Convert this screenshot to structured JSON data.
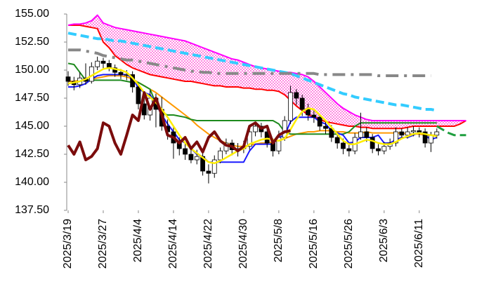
{
  "chart_data": {
    "type": "candlestick",
    "ylim": [
      137.5,
      155
    ],
    "yticks": [
      {
        "value": 137.5,
        "label": "137.50"
      },
      {
        "value": 140,
        "label": "140.00"
      },
      {
        "value": 142.5,
        "label": "142.50"
      },
      {
        "value": 145,
        "label": "145.00"
      },
      {
        "value": 147.5,
        "label": "147.50"
      },
      {
        "value": 150,
        "label": "150.00"
      },
      {
        "value": 152.5,
        "label": "152.50"
      },
      {
        "value": 155,
        "label": "155.00"
      }
    ],
    "categories": [
      "2025/3/19",
      null,
      null,
      null,
      null,
      null,
      "2025/3/27",
      null,
      null,
      null,
      null,
      null,
      "2025/4/4",
      null,
      null,
      null,
      null,
      null,
      "2025/4/14",
      null,
      null,
      null,
      null,
      null,
      "2025/4/22",
      null,
      null,
      null,
      null,
      null,
      "2025/4/30",
      null,
      null,
      null,
      null,
      null,
      "2025/5/8",
      null,
      null,
      null,
      null,
      null,
      "2025/5/16",
      null,
      null,
      null,
      null,
      null,
      "2025/5/26",
      null,
      null,
      null,
      null,
      null,
      "2025/6/3",
      null,
      null,
      null,
      null,
      null,
      "2025/6/11",
      null,
      null,
      null,
      null,
      null,
      null,
      null,
      null
    ],
    "up_color": "#ffffff",
    "down_color": "#000000",
    "candles": {
      "open": [
        149.4,
        149.0,
        148.7,
        149.3,
        149.0,
        150.3,
        150.8,
        150.6,
        150.2,
        149.8,
        149.6,
        149.6,
        148.5,
        147.0,
        146.0,
        147.5,
        146.5,
        145.0,
        144.5,
        143.5,
        143.0,
        142.5,
        142.0,
        142.3,
        141.0,
        140.8,
        142.0,
        142.8,
        143.5,
        142.9,
        143.0,
        143.2,
        144.5,
        145.0,
        144.5,
        143.5,
        142.8,
        144.0,
        145.5,
        148.0,
        147.5,
        146.5,
        146.0,
        145.8,
        145.0,
        144.8,
        144.0,
        143.5,
        143.0,
        142.8,
        144.0,
        144.5,
        144.0,
        143.0,
        142.8,
        143.2,
        143.5,
        144.5,
        144.2,
        144.5,
        144.6,
        144.5,
        143.5,
        144.2,
        null,
        null,
        null,
        null,
        null
      ],
      "high": [
        149.9,
        149.4,
        149.8,
        150.6,
        150.7,
        151.2,
        151.1,
        150.9,
        150.5,
        150.1,
        150.0,
        149.9,
        148.8,
        147.8,
        148.2,
        147.9,
        147.6,
        145.6,
        145.0,
        144.0,
        143.6,
        143.0,
        142.9,
        142.6,
        141.6,
        142.4,
        143.1,
        143.9,
        143.8,
        143.5,
        143.7,
        144.8,
        145.4,
        145.3,
        144.9,
        143.9,
        144.6,
        145.9,
        148.6,
        148.3,
        147.8,
        147.0,
        146.4,
        146.1,
        145.4,
        145.1,
        144.4,
        143.9,
        143.5,
        144.4,
        146.2,
        144.9,
        144.3,
        143.4,
        143.6,
        143.9,
        144.9,
        144.8,
        144.9,
        145.0,
        144.9,
        144.8,
        144.5,
        144.8,
        null,
        null,
        null,
        null,
        null
      ],
      "low": [
        148.6,
        148.2,
        148.4,
        148.7,
        148.8,
        150.0,
        150.1,
        149.9,
        149.4,
        149.2,
        149.1,
        148.0,
        146.5,
        145.6,
        145.5,
        144.9,
        144.6,
        143.8,
        142.1,
        142.4,
        142.0,
        141.7,
        141.6,
        140.6,
        139.9,
        140.4,
        141.7,
        142.5,
        142.4,
        142.3,
        142.6,
        142.9,
        144.1,
        144.0,
        143.1,
        142.3,
        142.5,
        143.7,
        145.2,
        146.9,
        145.9,
        145.5,
        145.3,
        144.6,
        144.3,
        143.6,
        143.0,
        142.5,
        142.3,
        142.5,
        143.8,
        143.6,
        142.6,
        142.4,
        142.5,
        142.9,
        143.2,
        143.9,
        143.9,
        144.1,
        144.0,
        143.1,
        142.7,
        143.9,
        null,
        null,
        null,
        null,
        null
      ],
      "close": [
        149.0,
        148.7,
        149.3,
        149.0,
        150.3,
        150.8,
        150.6,
        150.2,
        149.8,
        149.6,
        149.6,
        148.5,
        147.0,
        146.0,
        147.5,
        146.5,
        145.0,
        144.5,
        143.5,
        143.0,
        142.5,
        142.0,
        142.3,
        141.0,
        140.8,
        142.0,
        142.8,
        143.5,
        142.9,
        143.0,
        143.2,
        144.5,
        145.0,
        144.5,
        143.5,
        142.8,
        144.0,
        145.5,
        148.0,
        147.5,
        146.5,
        146.0,
        145.8,
        145.0,
        144.8,
        144.0,
        143.5,
        143.0,
        142.8,
        144.0,
        144.5,
        144.0,
        143.0,
        142.8,
        143.2,
        143.5,
        144.5,
        144.2,
        144.5,
        144.6,
        144.5,
        143.5,
        144.2,
        144.5,
        null,
        null,
        null,
        null,
        null
      ]
    },
    "cloud": {
      "series_a": 0,
      "series_b": 1,
      "color": "#ff33cc"
    },
    "series": [
      {
        "color": "#ff0000",
        "style": "solid",
        "width": 2,
        "values": [
          154.0,
          154.0,
          154.0,
          153.9,
          153.8,
          153.7,
          152.5,
          152.0,
          151.3,
          150.9,
          150.5,
          150.2,
          150.0,
          149.8,
          149.6,
          149.5,
          149.4,
          149.3,
          149.2,
          149.1,
          149.0,
          149.0,
          148.9,
          148.8,
          148.7,
          148.6,
          148.6,
          148.5,
          148.5,
          148.5,
          148.4,
          148.4,
          148.3,
          148.3,
          148.2,
          148.2,
          148.1,
          147.8,
          147.3,
          146.8,
          146.4,
          146.0,
          145.8,
          145.6,
          145.4,
          145.3,
          145.2,
          145.1,
          145.0,
          145.0,
          144.9,
          144.9,
          144.8,
          144.8,
          144.8,
          144.8,
          144.8,
          144.8,
          144.9,
          145.0,
          145.0,
          145.0,
          145.0,
          145.0,
          145.0,
          145.0,
          145.0,
          145.2,
          145.5
        ]
      },
      {
        "color": "#ff00ff",
        "style": "solid",
        "width": 2,
        "values": [
          154.0,
          154.1,
          154.1,
          154.2,
          154.4,
          154.9,
          154.2,
          154.0,
          153.8,
          153.7,
          153.6,
          153.5,
          153.4,
          153.3,
          153.2,
          153.1,
          153.0,
          152.9,
          152.8,
          152.7,
          152.6,
          152.4,
          152.2,
          152.0,
          151.8,
          151.6,
          151.4,
          151.2,
          151.0,
          150.9,
          150.7,
          150.5,
          150.3,
          150.2,
          150.1,
          150.0,
          149.9,
          149.8,
          149.8,
          149.7,
          149.6,
          149.4,
          149.0,
          148.5,
          148.0,
          147.5,
          147.0,
          146.6,
          146.3,
          146.0,
          145.8,
          145.6,
          145.5,
          145.5,
          145.5,
          145.5,
          145.5,
          145.5,
          145.5,
          145.5,
          145.5,
          145.5,
          145.5,
          145.5,
          145.5,
          145.5,
          145.5,
          145.5,
          145.5
        ]
      },
      {
        "color": "#33ccff",
        "style": "dashed",
        "width": 4,
        "values": [
          153.3,
          153.2,
          153.1,
          153.0,
          152.9,
          152.8,
          152.8,
          152.7,
          152.6,
          152.6,
          152.5,
          152.4,
          152.3,
          152.2,
          152.1,
          152.0,
          151.9,
          151.8,
          151.7,
          151.6,
          151.5,
          151.4,
          151.3,
          151.2,
          151.1,
          151.0,
          150.9,
          150.8,
          150.7,
          150.6,
          150.5,
          150.4,
          150.3,
          150.2,
          150.1,
          150.0,
          149.9,
          149.8,
          149.7,
          149.5,
          149.3,
          149.1,
          148.9,
          148.7,
          148.5,
          148.3,
          148.1,
          147.9,
          147.8,
          147.6,
          147.5,
          147.4,
          147.3,
          147.2,
          147.1,
          147.0,
          146.9,
          146.9,
          146.8,
          146.7,
          146.6,
          146.5,
          146.5,
          146.4,
          null,
          null,
          null,
          null,
          null
        ]
      },
      {
        "color": "#888888",
        "style": "dashdot",
        "width": 4,
        "values": [
          151.8,
          151.8,
          151.8,
          151.7,
          151.6,
          151.5,
          151.3,
          151.2,
          151.1,
          151.0,
          150.9,
          150.9,
          150.8,
          150.7,
          150.6,
          150.5,
          150.4,
          150.3,
          150.2,
          150.1,
          150.0,
          149.9,
          149.9,
          149.8,
          149.8,
          149.7,
          149.7,
          149.7,
          149.7,
          149.7,
          149.7,
          149.7,
          149.7,
          149.7,
          149.7,
          149.7,
          149.7,
          149.7,
          149.7,
          149.7,
          149.7,
          149.7,
          149.7,
          149.6,
          149.6,
          149.6,
          149.6,
          149.6,
          149.6,
          149.6,
          149.6,
          149.6,
          149.6,
          149.5,
          149.5,
          149.5,
          149.5,
          149.5,
          149.5,
          149.5,
          149.5,
          149.5,
          149.5,
          null,
          null,
          null,
          null,
          null,
          null
        ]
      },
      {
        "color": "#ff9900",
        "style": "solid",
        "width": 2,
        "values": [
          149.0,
          149.0,
          149.1,
          149.1,
          149.2,
          149.3,
          149.4,
          149.5,
          149.5,
          149.5,
          149.4,
          149.2,
          148.9,
          148.6,
          148.3,
          148.0,
          147.6,
          147.2,
          146.8,
          146.4,
          146.0,
          145.6,
          145.1,
          144.7,
          144.3,
          144.0,
          143.7,
          143.5,
          143.3,
          143.2,
          143.2,
          143.3,
          143.4,
          143.5,
          143.5,
          143.6,
          143.7,
          143.9,
          144.1,
          144.3,
          144.4,
          144.5,
          144.5,
          144.6,
          144.6,
          144.6,
          144.5,
          144.5,
          144.4,
          144.4,
          144.4,
          144.5,
          144.4,
          144.4,
          144.4,
          144.4,
          144.4,
          144.4,
          144.3,
          144.3,
          144.3,
          144.2,
          144.2,
          144.2,
          null,
          null,
          null,
          null,
          null
        ]
      },
      {
        "color": "#1e8a1e",
        "style": "solid",
        "width": 2,
        "values": [
          150.6,
          150.5,
          149.8,
          149.1,
          149.1,
          149.1,
          149.1,
          149.1,
          149.1,
          149.1,
          149.0,
          148.9,
          148.9,
          148.6,
          148.3,
          147.0,
          146.2,
          146.0,
          146.0,
          145.9,
          145.8,
          145.6,
          145.5,
          145.5,
          145.5,
          145.5,
          145.5,
          145.5,
          145.5,
          145.5,
          145.5,
          145.5,
          145.5,
          145.5,
          145.5,
          145.5,
          145.2,
          144.5,
          144.3,
          144.3,
          144.3,
          144.3,
          144.3,
          144.3,
          144.3,
          144.3,
          144.3,
          144.3,
          144.5,
          145.0,
          145.3,
          145.3,
          145.3,
          145.3,
          145.3,
          145.3,
          145.3,
          145.3,
          145.3,
          145.3,
          145.3,
          145.3,
          145.3,
          145.3,
          null,
          null,
          null,
          null,
          null
        ]
      },
      {
        "color": "#1a1aff",
        "style": "solid",
        "width": 2,
        "values": [
          148.5,
          148.5,
          148.6,
          148.8,
          149.2,
          149.5,
          149.6,
          149.6,
          149.6,
          149.6,
          149.6,
          149.3,
          148.4,
          148.0,
          147.8,
          147.0,
          146.0,
          145.2,
          144.5,
          143.8,
          143.5,
          143.0,
          142.5,
          142.3,
          141.8,
          141.8,
          141.8,
          141.8,
          141.8,
          141.8,
          141.8,
          142.8,
          143.4,
          143.4,
          143.4,
          143.4,
          144.0,
          144.2,
          145.4,
          145.8,
          145.8,
          145.8,
          145.8,
          145.4,
          145.2,
          144.6,
          144.4,
          144.2,
          143.5,
          143.6,
          144.0,
          144.0,
          144.0,
          144.2,
          143.5,
          143.5,
          143.8,
          144.0,
          144.0,
          144.2,
          144.5,
          144.2,
          143.8,
          144.0,
          null,
          null,
          null,
          null,
          null
        ]
      },
      {
        "color": "#ffee00",
        "style": "solid",
        "width": 2.5,
        "front": true,
        "values": [
          148.8,
          148.9,
          149.0,
          149.2,
          149.5,
          149.8,
          150.1,
          150.2,
          150.1,
          150.0,
          149.8,
          149.3,
          148.7,
          148.0,
          147.6,
          147.1,
          146.5,
          145.8,
          145.0,
          144.2,
          143.5,
          143.0,
          142.6,
          142.2,
          141.8,
          141.7,
          141.9,
          142.2,
          142.5,
          142.8,
          143.0,
          143.4,
          143.6,
          143.8,
          143.9,
          143.8,
          143.7,
          143.9,
          144.7,
          145.6,
          146.3,
          146.6,
          146.5,
          146.0,
          145.5,
          144.9,
          144.3,
          143.7,
          143.4,
          143.4,
          143.6,
          143.8,
          143.7,
          143.5,
          143.4,
          143.4,
          143.6,
          143.9,
          144.1,
          144.3,
          144.4,
          144.3,
          144.2,
          144.1,
          null,
          null,
          null,
          null,
          null
        ]
      },
      {
        "color": "#7b0c0c",
        "style": "solid",
        "width": 4,
        "front": true,
        "values": [
          143.3,
          142.5,
          143.6,
          142.0,
          142.3,
          143.0,
          145.3,
          145.0,
          143.5,
          142.5,
          144.2,
          146.0,
          145.5,
          148.0,
          146.5,
          147.5,
          146.0,
          144.2,
          144.0,
          143.5,
          144.0,
          143.0,
          143.6,
          142.7,
          144.0,
          144.5,
          143.7,
          143.3,
          143.2,
          142.8,
          143.2,
          145.0,
          145.3,
          144.8,
          145.0,
          143.5,
          144.2,
          144.5,
          144.6,
          null,
          null,
          null,
          null,
          null,
          null,
          null,
          null,
          null,
          null,
          null,
          null,
          null,
          null,
          null,
          null,
          null,
          null,
          null,
          null,
          null,
          null,
          null,
          null,
          null,
          null,
          null,
          null,
          null,
          null
        ]
      },
      {
        "color": "#1e9e3e",
        "style": "dashed",
        "width": 3,
        "front": true,
        "values": [
          null,
          null,
          null,
          null,
          null,
          null,
          null,
          null,
          null,
          null,
          null,
          null,
          null,
          null,
          null,
          null,
          null,
          null,
          null,
          null,
          null,
          null,
          null,
          null,
          null,
          null,
          null,
          null,
          null,
          null,
          null,
          null,
          null,
          null,
          null,
          null,
          null,
          null,
          null,
          null,
          null,
          null,
          null,
          null,
          null,
          null,
          null,
          null,
          null,
          null,
          null,
          null,
          null,
          null,
          null,
          null,
          null,
          null,
          null,
          null,
          null,
          null,
          null,
          145.0,
          144.7,
          144.4,
          144.2,
          144.2,
          144.2
        ]
      }
    ]
  }
}
